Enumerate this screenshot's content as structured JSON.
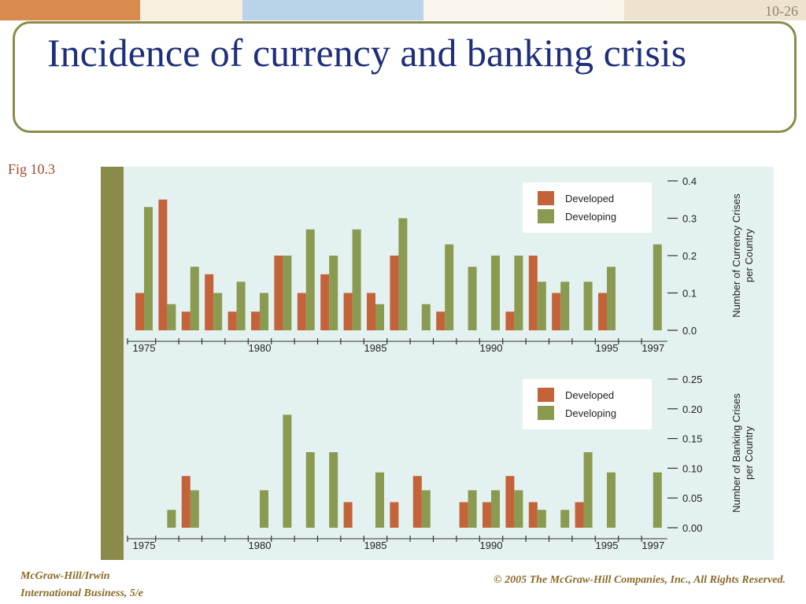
{
  "slide": {
    "number": "10-26",
    "title": "Incidence of currency and banking crisis",
    "fig_label": "Fig 10.3",
    "footer_left_line1": "McGraw-Hill/Irwin",
    "footer_left_line2": "International Business, 5/e",
    "footer_right": "© 2005 The McGraw-Hill Companies, Inc., All Rights Reserved."
  },
  "colors": {
    "developed": "#c4623a",
    "developing": "#8a9a50",
    "panel_bg": "#e3f2f0",
    "side_bar": "#8a8a4a",
    "title_border": "#8b8b4b"
  },
  "chart_data": [
    {
      "type": "bar",
      "xlabel": "",
      "ylabel": "Number of Currency Crises per Country",
      "ylim": [
        0,
        0.4
      ],
      "yticks": [
        "0.0",
        "0.1",
        "0.2",
        "0.3",
        "0.4"
      ],
      "x": [
        1975,
        1976,
        1977,
        1978,
        1979,
        1980,
        1981,
        1982,
        1983,
        1984,
        1985,
        1986,
        1987,
        1988,
        1989,
        1990,
        1991,
        1992,
        1993,
        1994,
        1995,
        1996,
        1997
      ],
      "xtick_labels": [
        "1975",
        "1980",
        "1985",
        "1990",
        "1995",
        "1997"
      ],
      "legend": "top-right",
      "series": [
        {
          "name": "Developed",
          "values": [
            0.1,
            0.35,
            0.05,
            0.15,
            0.05,
            0.05,
            0.2,
            0.1,
            0.15,
            0.1,
            0.1,
            0.2,
            0,
            0.05,
            0,
            0,
            0.05,
            0.2,
            0.1,
            0,
            0.1,
            0,
            0
          ]
        },
        {
          "name": "Developing",
          "values": [
            0.33,
            0.07,
            0.17,
            0.1,
            0.13,
            0.1,
            0.2,
            0.27,
            0.2,
            0.27,
            0.07,
            0.3,
            0.07,
            0.23,
            0.17,
            0.2,
            0.2,
            0.13,
            0.13,
            0.13,
            0.17,
            0,
            0.23
          ]
        }
      ]
    },
    {
      "type": "bar",
      "xlabel": "",
      "ylabel": "Number of Banking Crises per Country",
      "ylim": [
        0,
        0.25
      ],
      "yticks": [
        "0.00",
        "0.05",
        "0.10",
        "0.15",
        "0.20",
        "0.25"
      ],
      "x": [
        1975,
        1976,
        1977,
        1978,
        1979,
        1980,
        1981,
        1982,
        1983,
        1984,
        1985,
        1986,
        1987,
        1988,
        1989,
        1990,
        1991,
        1992,
        1993,
        1994,
        1995,
        1996,
        1997
      ],
      "xtick_labels": [
        "1975",
        "1980",
        "1985",
        "1990",
        "1995",
        "1997"
      ],
      "legend": "top-right",
      "series": [
        {
          "name": "Developed",
          "values": [
            0,
            0,
            0.087,
            0,
            0,
            0,
            0,
            0,
            0,
            0.043,
            0,
            0.043,
            0.087,
            0,
            0.043,
            0.043,
            0.087,
            0.043,
            0,
            0.043,
            0,
            0,
            0
          ]
        },
        {
          "name": "Developing",
          "values": [
            0,
            0.03,
            0.063,
            0,
            0,
            0.063,
            0.19,
            0.127,
            0.127,
            0,
            0.093,
            0,
            0.063,
            0,
            0.063,
            0.063,
            0.063,
            0.03,
            0.03,
            0.127,
            0.093,
            0,
            0.093
          ]
        }
      ]
    }
  ]
}
